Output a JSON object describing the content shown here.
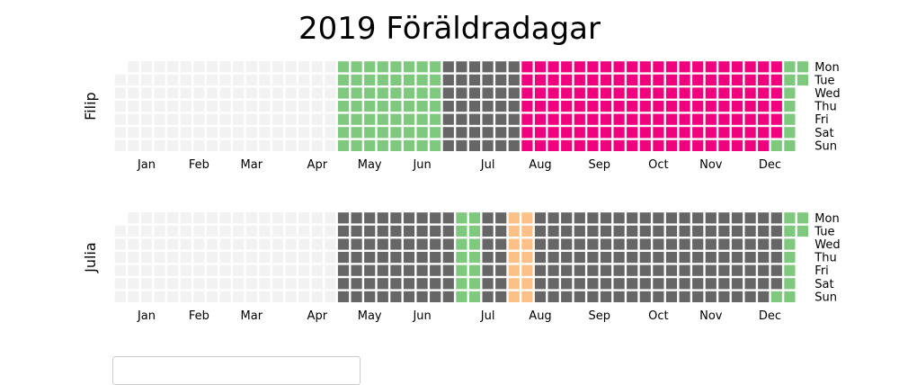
{
  "chart_data": {
    "type": "heatmap",
    "title": "2019 Föräldradagar",
    "year": 2019,
    "month_labels": [
      "Jan",
      "Feb",
      "Mar",
      "Apr",
      "May",
      "Jun",
      "Jul",
      "Aug",
      "Sep",
      "Oct",
      "Nov",
      "Dec"
    ],
    "day_labels": [
      "Mon",
      "Tue",
      "Wed",
      "Thu",
      "Fri",
      "Sat",
      "Sun"
    ],
    "colors": {
      "none": "#f2f2f2",
      "green": "#7fc97f",
      "gray": "#666666",
      "orange": "#fdc086",
      "pink": "#f0027f"
    },
    "rows": [
      {
        "label": "Filip",
        "periods": [
          {
            "start": "2019-01-01",
            "end": "2019-04-28",
            "color": "none"
          },
          {
            "start": "2019-04-29",
            "end": "2019-06-23",
            "color": "green"
          },
          {
            "start": "2019-06-24",
            "end": "2019-08-04",
            "color": "gray"
          },
          {
            "start": "2019-08-05",
            "end": "2019-12-21",
            "color": "pink"
          },
          {
            "start": "2019-12-22",
            "end": "2019-12-31",
            "color": "green"
          }
        ]
      },
      {
        "label": "Julia",
        "periods": [
          {
            "start": "2019-01-01",
            "end": "2019-04-28",
            "color": "none"
          },
          {
            "start": "2019-04-29",
            "end": "2019-06-30",
            "color": "gray"
          },
          {
            "start": "2019-07-01",
            "end": "2019-07-14",
            "color": "green"
          },
          {
            "start": "2019-07-15",
            "end": "2019-07-28",
            "color": "gray"
          },
          {
            "start": "2019-07-29",
            "end": "2019-08-11",
            "color": "orange"
          },
          {
            "start": "2019-08-12",
            "end": "2019-12-21",
            "color": "gray"
          },
          {
            "start": "2019-12-22",
            "end": "2019-12-31",
            "color": "green"
          }
        ]
      }
    ]
  }
}
